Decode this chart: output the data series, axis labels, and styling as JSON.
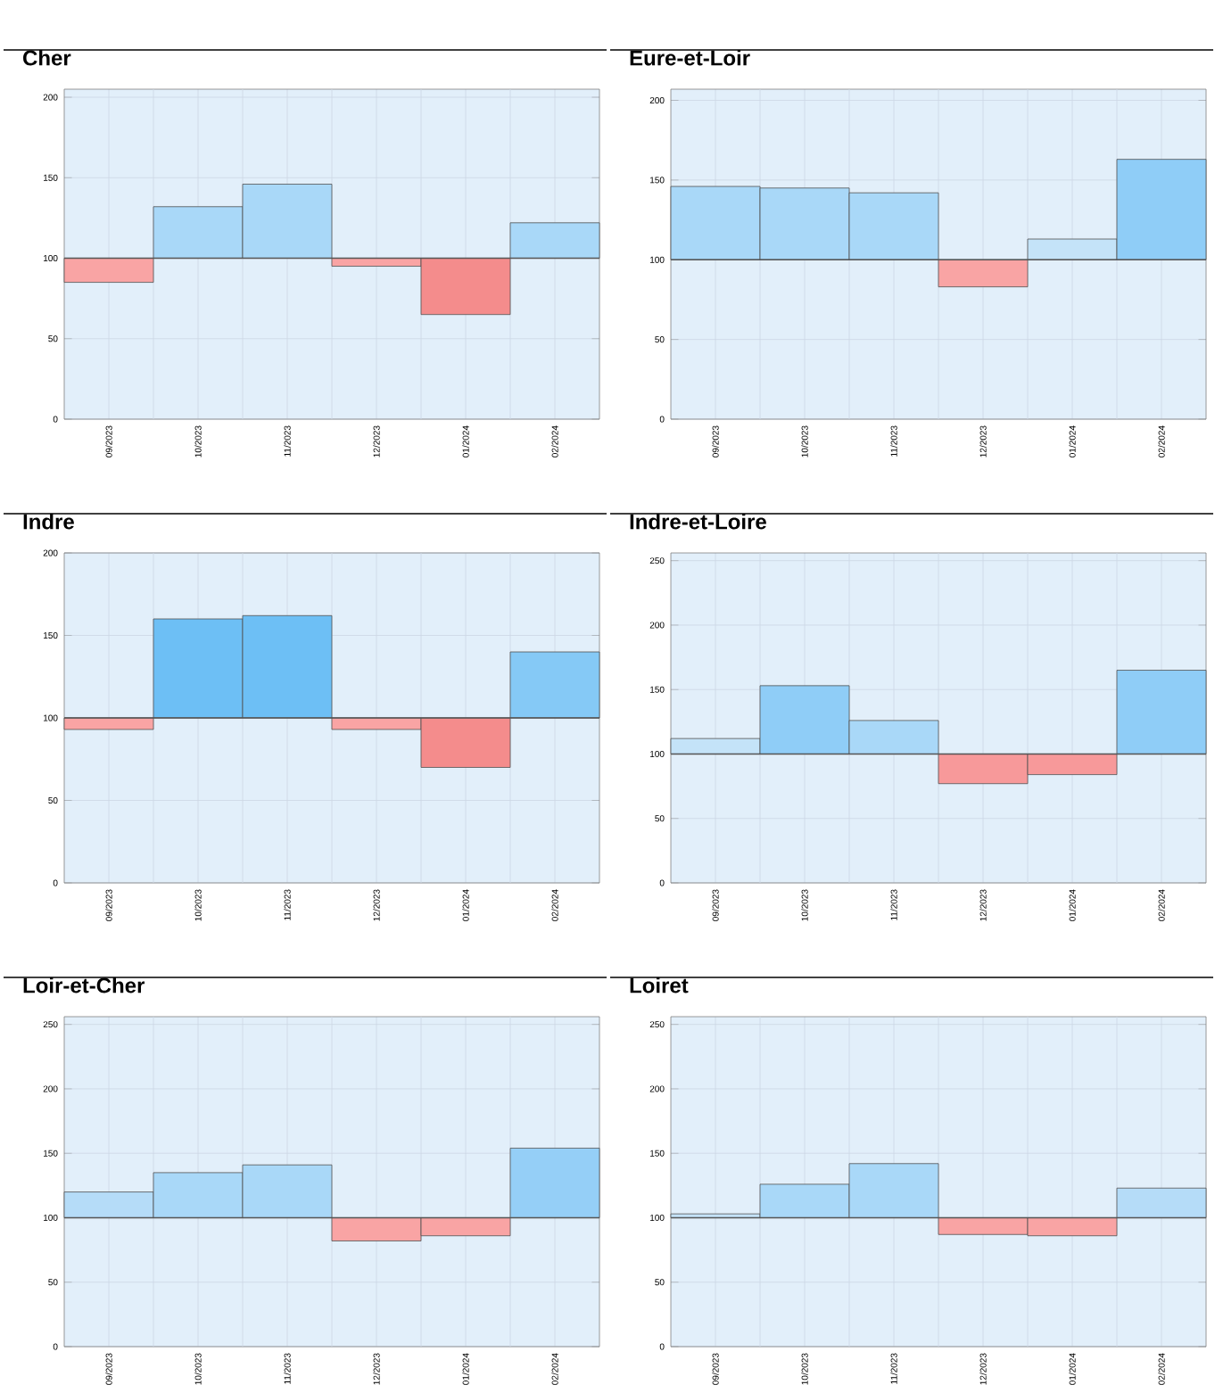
{
  "chart_data": [
    {
      "type": "bar",
      "title": "Cher",
      "categories": [
        "09/2023",
        "10/2023",
        "11/2023",
        "12/2023",
        "01/2024",
        "02/2024"
      ],
      "base": [
        100,
        100,
        100,
        100,
        100,
        100
      ],
      "values": [
        -15,
        32,
        46,
        -5,
        -35,
        22
      ],
      "colors": [
        "#f9a4a4",
        "#a9d8f8",
        "#a9d8f8",
        "#f9a4a4",
        "#f48c8c",
        "#a9d8f8"
      ],
      "ylim": [
        0,
        205
      ],
      "yticks": [
        0,
        50,
        100,
        150,
        200
      ],
      "grid": true,
      "ref_lines": [
        {
          "axis": "y",
          "value": 100,
          "color": "#555555"
        }
      ]
    },
    {
      "type": "bar",
      "title": "Eure-et-Loir",
      "categories": [
        "09/2023",
        "10/2023",
        "11/2023",
        "12/2023",
        "01/2024",
        "02/2024"
      ],
      "base": [
        100,
        100,
        100,
        100,
        100,
        100
      ],
      "values": [
        46,
        45,
        42,
        -17,
        13,
        63
      ],
      "colors": [
        "#a9d8f8",
        "#a9d8f8",
        "#a9d8f8",
        "#f9a4a4",
        "#c4e3f8",
        "#8fcdf7"
      ],
      "ylim": [
        0,
        207
      ],
      "yticks": [
        0,
        50,
        100,
        150,
        200
      ],
      "grid": true,
      "ref_lines": [
        {
          "axis": "y",
          "value": 100,
          "color": "#555555"
        }
      ]
    },
    {
      "type": "bar",
      "title": "Indre",
      "categories": [
        "09/2023",
        "10/2023",
        "11/2023",
        "12/2023",
        "01/2024",
        "02/2024"
      ],
      "base": [
        100,
        100,
        100,
        100,
        100,
        100
      ],
      "values": [
        -7,
        60,
        62,
        -7,
        -30,
        40
      ],
      "colors": [
        "#f9a4a4",
        "#6dbff5",
        "#6dbff5",
        "#f9a4a4",
        "#f48c8c",
        "#85c9f6"
      ],
      "ylim": [
        0,
        200
      ],
      "yticks": [
        0,
        50,
        100,
        150,
        200
      ],
      "grid": true,
      "ref_lines": [
        {
          "axis": "y",
          "value": 100,
          "color": "#555555"
        }
      ]
    },
    {
      "type": "bar",
      "title": "Indre-et-Loire",
      "categories": [
        "09/2023",
        "10/2023",
        "11/2023",
        "12/2023",
        "01/2024",
        "02/2024"
      ],
      "base": [
        100,
        100,
        100,
        100,
        100,
        100
      ],
      "values": [
        12,
        53,
        26,
        -23,
        -16,
        65
      ],
      "colors": [
        "#c4e3f8",
        "#8fcdf7",
        "#a9d8f8",
        "#f7999a",
        "#f7999a",
        "#8fcdf7"
      ],
      "ylim": [
        0,
        256
      ],
      "yticks": [
        0,
        50,
        100,
        150,
        200,
        250
      ],
      "grid": true,
      "ref_lines": [
        {
          "axis": "y",
          "value": 100,
          "color": "#555555"
        }
      ]
    },
    {
      "type": "bar",
      "title": "Loir-et-Cher",
      "categories": [
        "09/2023",
        "10/2023",
        "11/2023",
        "12/2023",
        "01/2024",
        "02/2024"
      ],
      "base": [
        100,
        100,
        100,
        100,
        100,
        100
      ],
      "values": [
        20,
        35,
        41,
        -18,
        -14,
        54
      ],
      "colors": [
        "#b5dcf8",
        "#a9d8f8",
        "#a9d8f8",
        "#f9a4a4",
        "#f9a4a4",
        "#95cff7"
      ],
      "ylim": [
        0,
        256
      ],
      "yticks": [
        0,
        50,
        100,
        150,
        200,
        250
      ],
      "grid": true,
      "ref_lines": [
        {
          "axis": "y",
          "value": 100,
          "color": "#555555"
        }
      ]
    },
    {
      "type": "bar",
      "title": "Loiret",
      "categories": [
        "09/2023",
        "10/2023",
        "11/2023",
        "12/2023",
        "01/2024",
        "02/2024"
      ],
      "base": [
        100,
        100,
        100,
        100,
        100,
        100
      ],
      "values": [
        3,
        26,
        42,
        -13,
        -14,
        23
      ],
      "colors": [
        "#c4e3f8",
        "#a9d8f8",
        "#a9d8f8",
        "#f9a4a4",
        "#f9a4a4",
        "#b5dcf8"
      ],
      "ylim": [
        0,
        256
      ],
      "yticks": [
        0,
        50,
        100,
        150,
        200,
        250
      ],
      "grid": true,
      "ref_lines": [
        {
          "axis": "y",
          "value": 100,
          "color": "#555555"
        }
      ]
    }
  ]
}
